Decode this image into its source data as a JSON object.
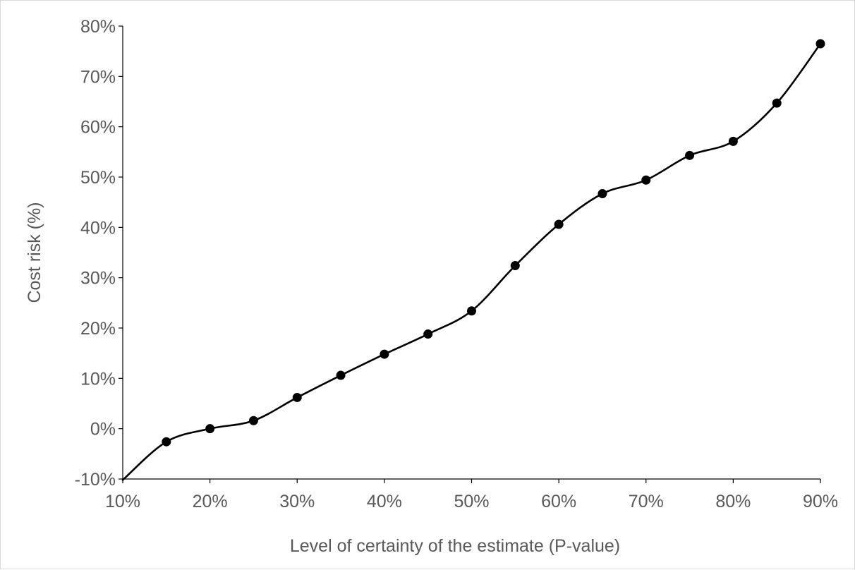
{
  "chart_data": {
    "type": "line",
    "title": "",
    "xlabel": "Level of certainty of the estimate (P-value)",
    "ylabel": "Cost risk (%)",
    "x": [
      10,
      15,
      20,
      25,
      30,
      35,
      40,
      45,
      50,
      55,
      60,
      65,
      70,
      75,
      80,
      85,
      90
    ],
    "series": [
      {
        "values": [
          -10.2,
          -2.6,
          0.0,
          1.6,
          6.2,
          10.6,
          14.8,
          18.8,
          23.4,
          32.4,
          40.6,
          46.7,
          49.4,
          54.3,
          57.1,
          64.7,
          76.5
        ],
        "color": "#000000"
      }
    ],
    "marker_from_index": 1,
    "smooth": true,
    "xlim": [
      10,
      90
    ],
    "ylim": [
      -10,
      80
    ],
    "x_ticks": [
      10,
      20,
      30,
      40,
      50,
      60,
      70,
      80,
      90
    ],
    "y_ticks": [
      -10,
      0,
      10,
      20,
      30,
      40,
      50,
      60,
      70,
      80
    ],
    "x_tick_labels": [
      "10%",
      "20%",
      "30%",
      "40%",
      "50%",
      "60%",
      "70%",
      "80%",
      "90%"
    ],
    "y_tick_labels": [
      "-10%",
      "0%",
      "10%",
      "20%",
      "30%",
      "40%",
      "50%",
      "60%",
      "70%",
      "80%"
    ],
    "grid": false,
    "legend": "none",
    "colors": {
      "axis": "#000000",
      "text": "#595959",
      "border": "#d9d9d9"
    }
  }
}
